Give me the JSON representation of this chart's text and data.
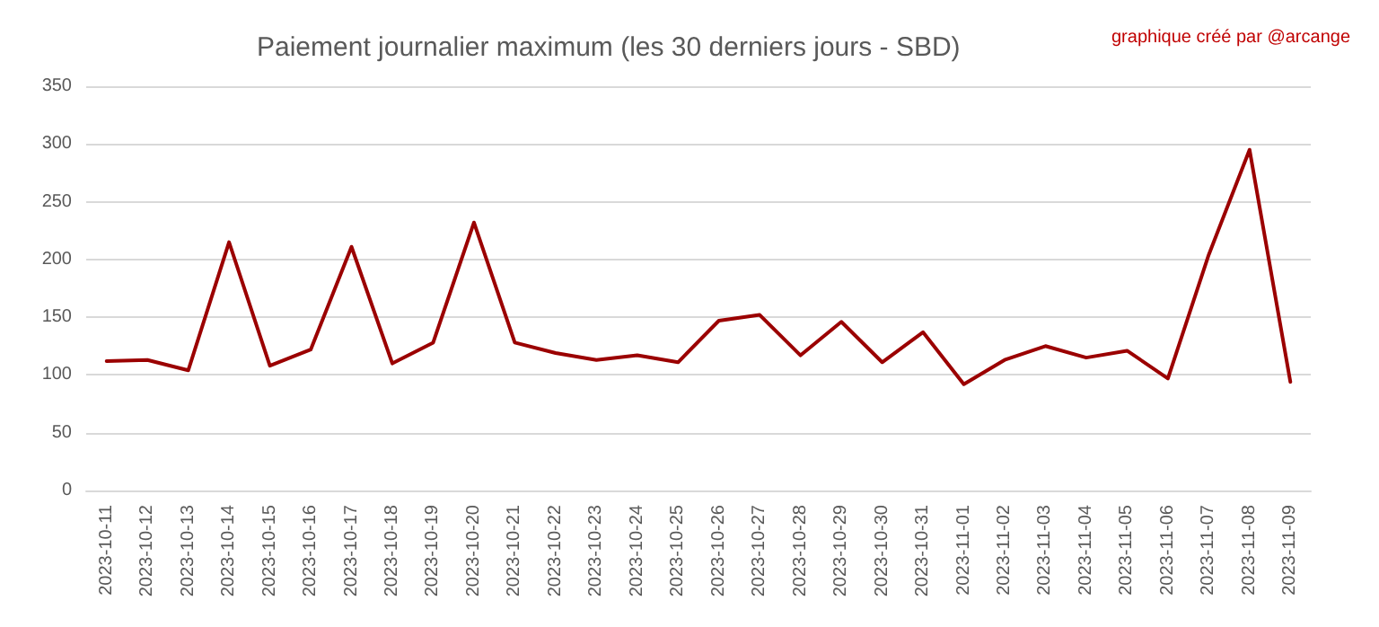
{
  "chart_data": {
    "type": "line",
    "title": "Paiement journalier maximum (les 30 derniers jours - SBD)",
    "annotations": [
      "graphique créé par @arcange"
    ],
    "categories": [
      "2023-10-11",
      "2023-10-12",
      "2023-10-13",
      "2023-10-14",
      "2023-10-15",
      "2023-10-16",
      "2023-10-17",
      "2023-10-18",
      "2023-10-19",
      "2023-10-20",
      "2023-10-21",
      "2023-10-22",
      "2023-10-23",
      "2023-10-24",
      "2023-10-25",
      "2023-10-26",
      "2023-10-27",
      "2023-10-28",
      "2023-10-29",
      "2023-10-30",
      "2023-10-31",
      "2023-11-01",
      "2023-11-02",
      "2023-11-03",
      "2023-11-04",
      "2023-11-05",
      "2023-11-06",
      "2023-11-07",
      "2023-11-08",
      "2023-11-09"
    ],
    "series": [
      {
        "color": "#9b0000",
        "values": [
          112,
          113,
          104,
          215,
          108,
          122,
          211,
          110,
          128,
          232,
          128,
          119,
          113,
          117,
          111,
          147,
          152,
          117,
          146,
          111,
          137,
          92,
          113,
          125,
          115,
          121,
          97,
          204,
          295,
          94
        ]
      }
    ],
    "ylim": [
      0,
      350
    ],
    "yticks": [
      0,
      50,
      100,
      150,
      200,
      250,
      300,
      350
    ],
    "grid": "y",
    "marker": "none",
    "line_style": "solid"
  }
}
